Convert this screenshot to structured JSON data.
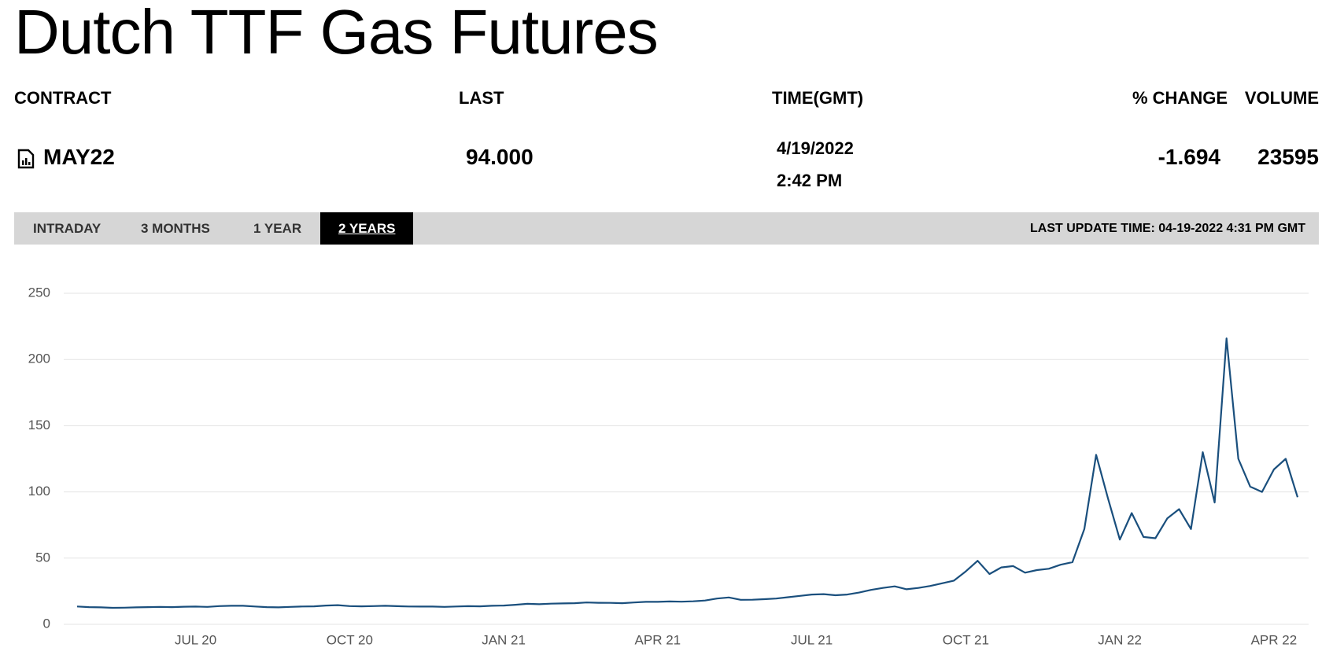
{
  "header": {
    "title": "Dutch TTF Gas Futures"
  },
  "quote_table": {
    "columns": [
      "CONTRACT",
      "LAST",
      "TIME(GMT)",
      "% CHANGE",
      "VOLUME"
    ],
    "row": {
      "contract": "MAY22",
      "last": "94.000",
      "date": "4/19/2022",
      "time": "2:42 PM",
      "change": "-1.694",
      "volume": "23595"
    }
  },
  "tabs": {
    "items": [
      "INTRADAY",
      "3 MONTHS",
      "1 YEAR",
      "2 YEARS"
    ],
    "active": 3,
    "last_update": "LAST UPDATE TIME: 04-19-2022 4:31 PM GMT"
  },
  "chart_data": {
    "type": "line",
    "color": "#1a4f7d",
    "grid": true,
    "ylim": [
      0,
      250
    ],
    "yticks": [
      0,
      50,
      100,
      150,
      200,
      250
    ],
    "categories": [
      null,
      null,
      null,
      null,
      null,
      null,
      null,
      null,
      null,
      null,
      "JUL 20",
      null,
      null,
      null,
      null,
      null,
      null,
      null,
      null,
      null,
      null,
      null,
      null,
      "OCT 20",
      null,
      null,
      null,
      null,
      null,
      null,
      null,
      null,
      null,
      null,
      null,
      null,
      "JAN 21",
      null,
      null,
      null,
      null,
      null,
      null,
      null,
      null,
      null,
      null,
      null,
      null,
      "APR 21",
      null,
      null,
      null,
      null,
      null,
      null,
      null,
      null,
      null,
      null,
      null,
      null,
      "JUL 21",
      null,
      null,
      null,
      null,
      null,
      null,
      null,
      null,
      null,
      null,
      null,
      null,
      "OCT 21",
      null,
      null,
      null,
      null,
      null,
      null,
      null,
      null,
      null,
      null,
      null,
      null,
      "JAN 22",
      null,
      null,
      null,
      null,
      null,
      null,
      null,
      null,
      null,
      null,
      null,
      null,
      "APR 22",
      null,
      null
    ],
    "values": [
      13.5,
      13,
      12.8,
      12.5,
      12.6,
      12.8,
      13,
      13.2,
      13,
      13.3,
      13.4,
      13.2,
      13.8,
      14,
      14,
      13.5,
      13,
      12.8,
      13.2,
      13.5,
      13.6,
      14.2,
      14.5,
      13.8,
      13.6,
      13.8,
      14,
      13.7,
      13.5,
      13.4,
      13.4,
      13.2,
      13.5,
      13.7,
      13.6,
      14,
      14.2,
      14.8,
      15.5,
      15.2,
      15.6,
      15.8,
      16,
      16.5,
      16.3,
      16.2,
      16,
      16.5,
      17,
      17,
      17.3,
      17.1,
      17.4,
      18,
      19.5,
      20.3,
      18.5,
      18.6,
      19,
      19.5,
      20.5,
      21.5,
      22.5,
      22.8,
      22,
      22.5,
      24,
      26,
      27.5,
      28.7,
      26.5,
      27.5,
      29,
      31,
      33,
      40,
      48,
      38,
      43,
      44,
      39,
      41,
      42,
      45,
      47,
      72,
      128,
      95,
      64,
      84,
      66,
      65,
      80,
      87,
      72,
      130,
      92,
      216,
      125,
      104,
      100,
      117,
      125,
      96
    ]
  }
}
